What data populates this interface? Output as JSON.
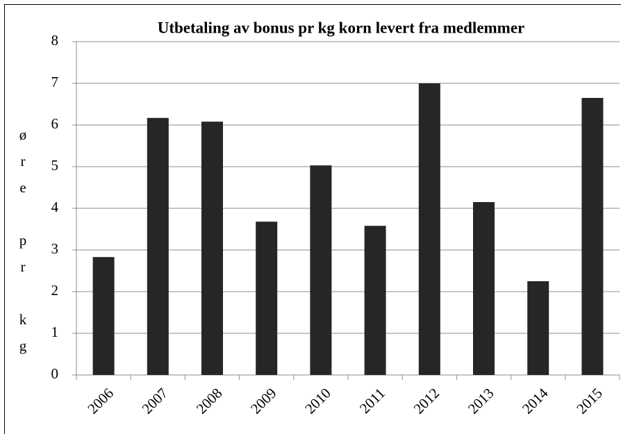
{
  "chart_data": {
    "type": "bar",
    "title": "Utbetaling av bonus pr kg korn levert fra medlemmer",
    "y_label": "øre pr kg",
    "categories": [
      "2006",
      "2007",
      "2008",
      "2009",
      "2010",
      "2011",
      "2012",
      "2013",
      "2014",
      "2015"
    ],
    "values": [
      2.83,
      6.17,
      6.08,
      3.68,
      5.03,
      3.58,
      7.0,
      4.15,
      2.25,
      6.65
    ],
    "color": "#262626",
    "ylim": [
      0,
      8
    ],
    "yticks": [
      0,
      1,
      2,
      3,
      4,
      5,
      6,
      7,
      8
    ],
    "grid": true
  }
}
